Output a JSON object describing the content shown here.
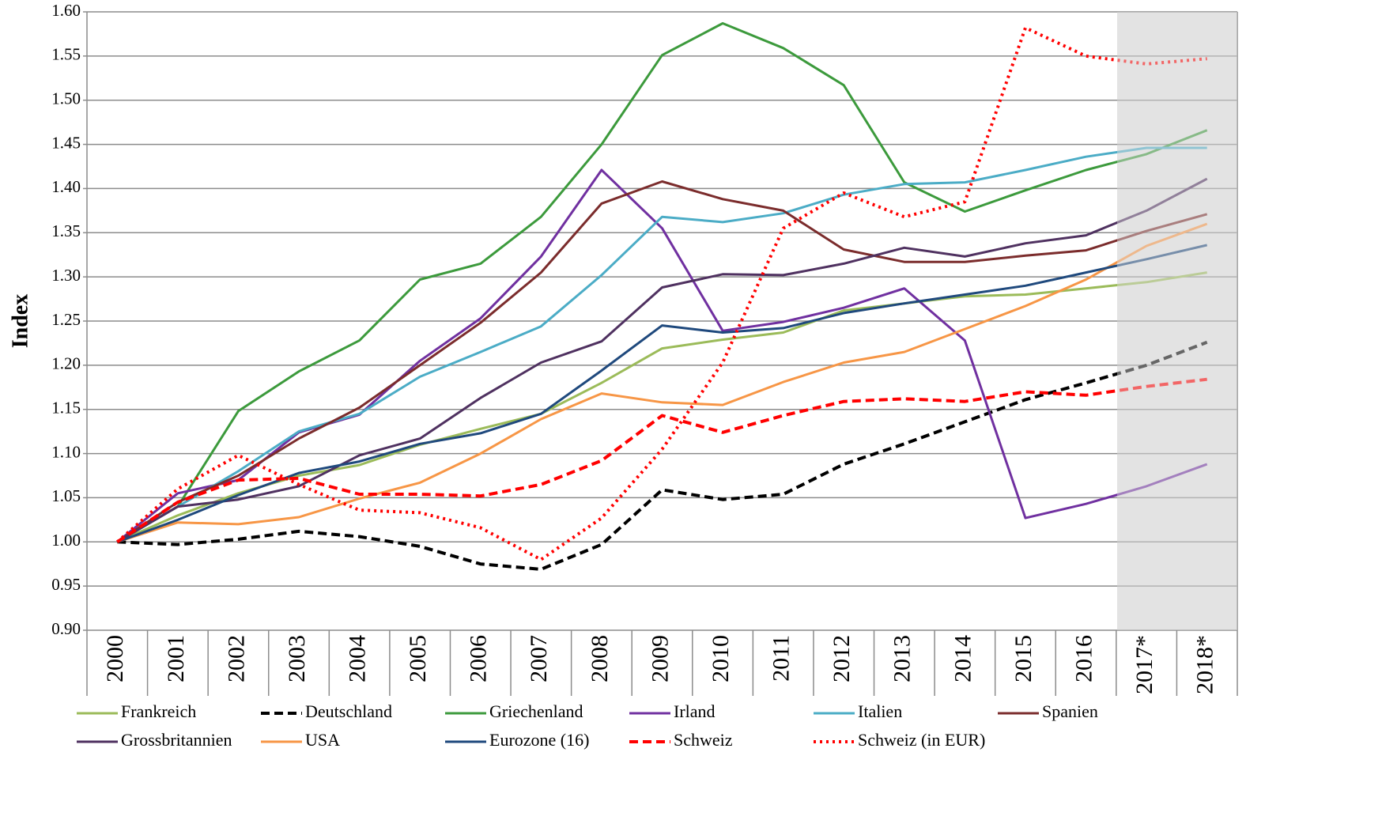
{
  "chart_data": {
    "type": "line",
    "y_label": "Index",
    "categories": [
      "2000",
      "2001",
      "2002",
      "2003",
      "2004",
      "2005",
      "2006",
      "2007",
      "2008",
      "2009",
      "2010",
      "2011",
      "2012",
      "2013",
      "2014",
      "2015",
      "2016",
      "2017*",
      "2018*"
    ],
    "ylim": [
      0.9,
      1.6
    ],
    "yticks": [
      {
        "value": 0.9,
        "label": "0.90"
      },
      0.95,
      {
        "value": 1.0,
        "label": "1.00"
      },
      1.05,
      {
        "value": 1.1,
        "label": "1.10"
      },
      1.15,
      {
        "value": 1.2,
        "label": "1.20"
      },
      1.25,
      {
        "value": 1.3,
        "label": "1.30"
      },
      1.35,
      {
        "value": 1.4,
        "label": "1.40"
      },
      1.45,
      {
        "value": 1.5,
        "label": "1.50"
      },
      1.55,
      {
        "value": 1.6,
        "label": "1.60"
      }
    ],
    "grid": true,
    "series": [
      {
        "name": "Frankreich",
        "color": "#9bbb59",
        "style": "solid",
        "values": [
          1.0,
          1.03,
          1.055,
          1.075,
          1.087,
          1.11,
          1.128,
          1.145,
          1.18,
          1.219,
          1.229,
          1.237,
          1.262,
          1.27,
          1.278,
          1.28,
          1.287,
          1.294,
          1.305
        ]
      },
      {
        "name": "Deutschland",
        "color": "#000000",
        "style": "dashed",
        "values": [
          1.0,
          0.997,
          1.003,
          1.012,
          1.006,
          0.995,
          0.975,
          0.969,
          0.997,
          1.059,
          1.048,
          1.054,
          1.088,
          1.111,
          1.136,
          1.161,
          1.18,
          1.2,
          1.226
        ]
      },
      {
        "name": "Griechenland",
        "color": "#3c9a3c",
        "style": "solid",
        "values": [
          1.0,
          1.04,
          1.148,
          1.193,
          1.228,
          1.297,
          1.315,
          1.368,
          1.45,
          1.551,
          1.587,
          1.559,
          1.517,
          1.407,
          1.374,
          1.398,
          1.421,
          1.439,
          1.466
        ]
      },
      {
        "name": "Irland",
        "color": "#7030a0",
        "style": "solid",
        "values": [
          1.0,
          1.055,
          1.07,
          1.124,
          1.144,
          1.205,
          1.253,
          1.323,
          1.421,
          1.355,
          1.239,
          1.249,
          1.265,
          1.287,
          1.228,
          1.027,
          1.043,
          1.063,
          1.088
        ]
      },
      {
        "name": "Italien",
        "color": "#4bacc6",
        "style": "solid",
        "values": [
          1.0,
          1.04,
          1.08,
          1.125,
          1.145,
          1.187,
          1.215,
          1.244,
          1.302,
          1.368,
          1.362,
          1.372,
          1.393,
          1.405,
          1.407,
          1.421,
          1.436,
          1.446,
          1.446
        ]
      },
      {
        "name": "Spanien",
        "color": "#7b2c2c",
        "style": "solid",
        "values": [
          1.0,
          1.045,
          1.075,
          1.117,
          1.152,
          1.2,
          1.248,
          1.305,
          1.383,
          1.408,
          1.388,
          1.375,
          1.331,
          1.317,
          1.317,
          1.324,
          1.33,
          1.352,
          1.371
        ]
      },
      {
        "name": "Grossbritannien",
        "color": "#4f3160",
        "style": "solid",
        "values": [
          1.0,
          1.04,
          1.048,
          1.063,
          1.098,
          1.117,
          1.163,
          1.203,
          1.227,
          1.288,
          1.303,
          1.302,
          1.315,
          1.333,
          1.323,
          1.338,
          1.347,
          1.375,
          1.411
        ]
      },
      {
        "name": "USA",
        "color": "#f79646",
        "style": "solid",
        "values": [
          1.0,
          1.022,
          1.02,
          1.028,
          1.049,
          1.067,
          1.1,
          1.139,
          1.168,
          1.158,
          1.155,
          1.181,
          1.203,
          1.215,
          1.241,
          1.267,
          1.297,
          1.335,
          1.36
        ]
      },
      {
        "name": "Eurozone (16)",
        "color": "#1f497d",
        "style": "solid",
        "values": [
          1.0,
          1.025,
          1.053,
          1.078,
          1.091,
          1.111,
          1.123,
          1.145,
          1.194,
          1.245,
          1.237,
          1.242,
          1.259,
          1.27,
          1.28,
          1.29,
          1.305,
          1.32,
          1.336
        ]
      },
      {
        "name": "Schweiz",
        "color": "#ff0000",
        "style": "dashed",
        "values": [
          1.0,
          1.045,
          1.07,
          1.072,
          1.054,
          1.054,
          1.052,
          1.065,
          1.092,
          1.143,
          1.124,
          1.143,
          1.159,
          1.162,
          1.159,
          1.17,
          1.166,
          1.176,
          1.184
        ]
      },
      {
        "name": "Schweiz (in EUR)",
        "color": "#ff0000",
        "style": "dotted",
        "values": [
          1.0,
          1.06,
          1.098,
          1.065,
          1.036,
          1.033,
          1.016,
          0.98,
          1.027,
          1.105,
          1.203,
          1.355,
          1.395,
          1.368,
          1.385,
          1.582,
          1.55,
          1.541,
          1.547
        ]
      }
    ]
  }
}
